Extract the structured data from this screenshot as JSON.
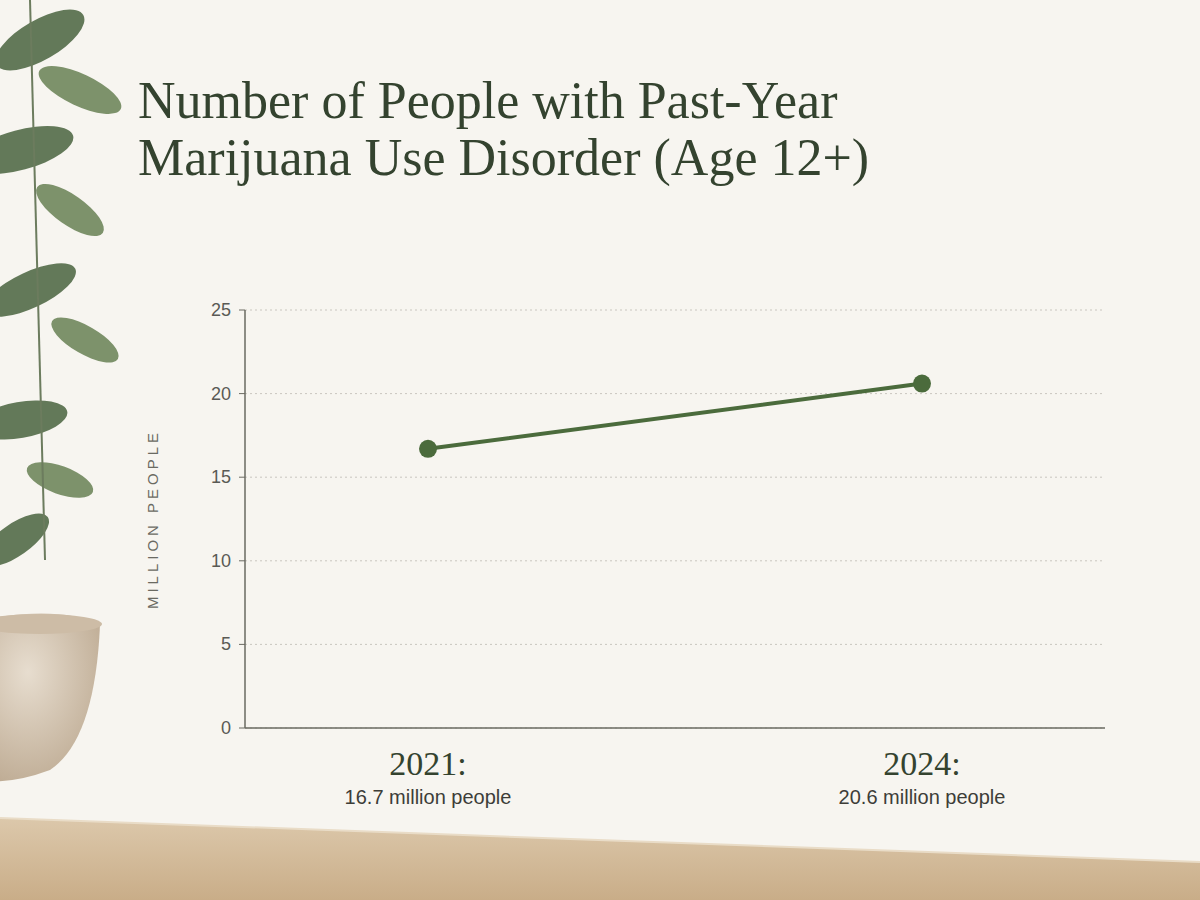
{
  "chart_data": {
    "type": "line",
    "title": "Number of People with Past-Year Marijuana Use Disorder (Age 12+)",
    "y_label": "MILLION PEOPLE",
    "categories": [
      "2021:",
      "2024:"
    ],
    "values": [
      16.7,
      20.6
    ],
    "value_labels": [
      "16.7 million people",
      "20.6 million people"
    ],
    "data_labels": true,
    "color": "#4b6b3c",
    "marker": "circle",
    "ylim": [
      0,
      25
    ],
    "yticks": [
      0,
      5,
      10,
      15,
      20,
      25
    ],
    "grid": true
  }
}
